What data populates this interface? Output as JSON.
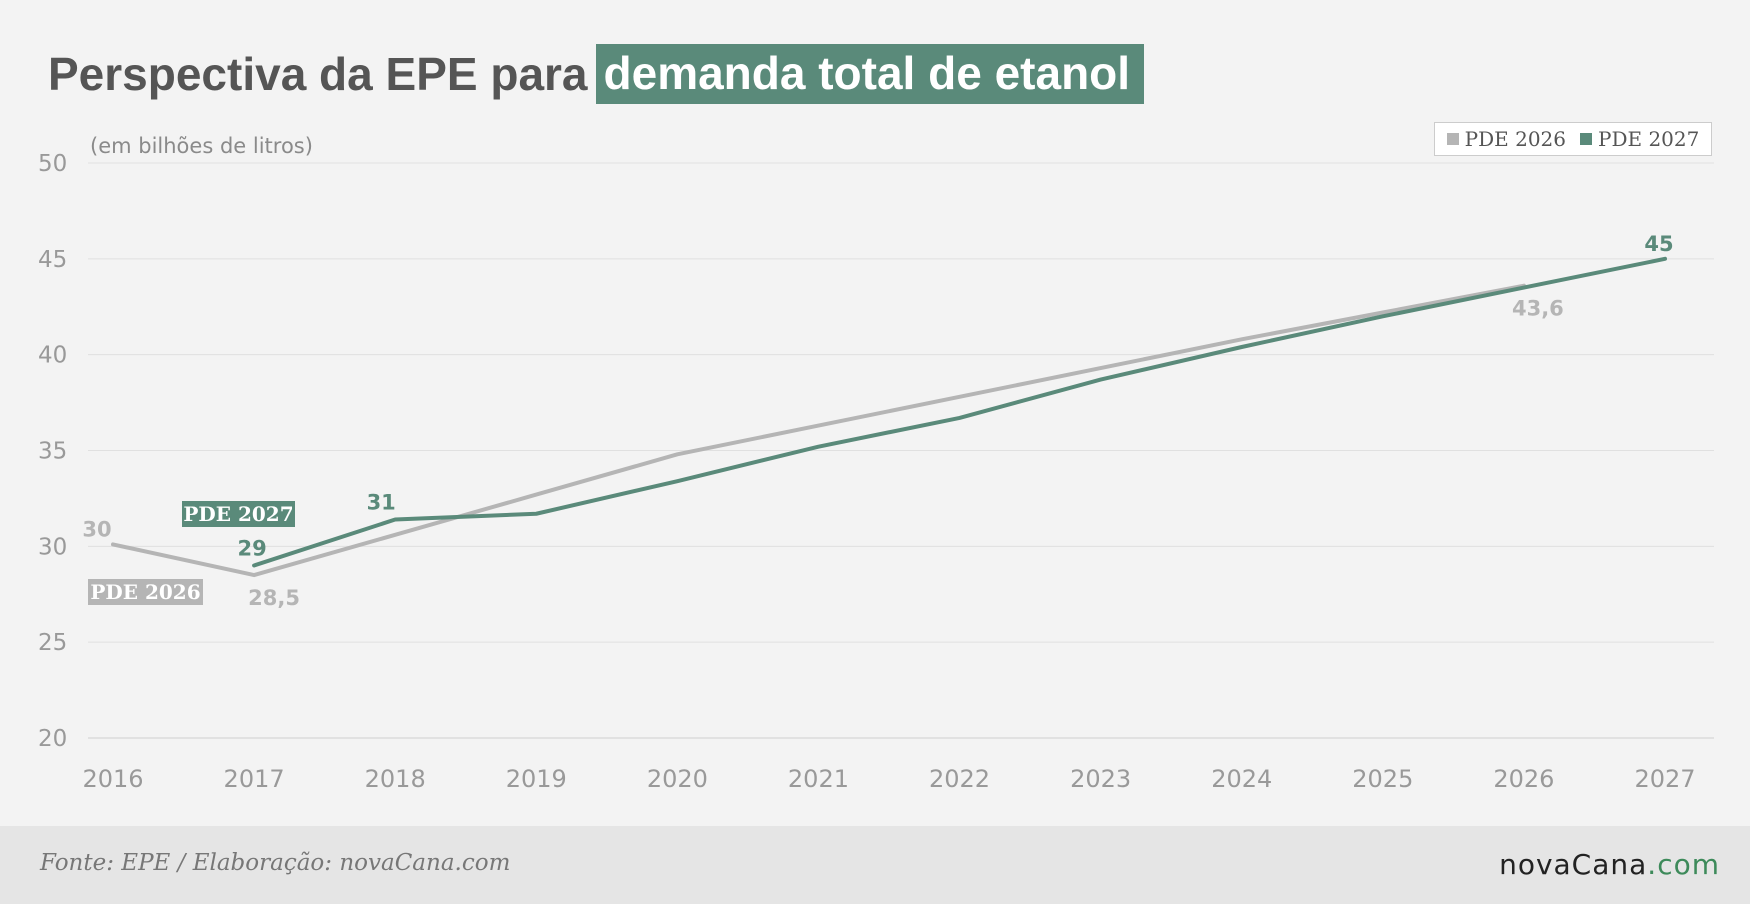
{
  "title": {
    "part1": "Perspectiva da EPE para",
    "part2": "demanda total de etanol"
  },
  "footer": {
    "source": "Fonte: EPE / Elaboração: novaCana.com",
    "brand_main": "novaCana",
    "brand_tld": ".com"
  },
  "colors": {
    "pde2026": "#b5b5b5",
    "pde2027": "#5a8a7a",
    "highlight": "#5a8a7a"
  },
  "chart_data": {
    "type": "line",
    "title": "Perspectiva da EPE para demanda total de etanol",
    "unit_label": "(em bilhões de litros)",
    "xlabel": "",
    "ylabel": "",
    "ylim": [
      20,
      50
    ],
    "yticks": [
      20,
      25,
      30,
      35,
      40,
      45,
      50
    ],
    "x": [
      2016,
      2017,
      2018,
      2019,
      2020,
      2021,
      2022,
      2023,
      2024,
      2025,
      2026,
      2027
    ],
    "grid": true,
    "legend_position": "top-right",
    "series": [
      {
        "name": "PDE 2026",
        "color": "#b5b5b5",
        "x": [
          2016,
          2017,
          2018,
          2019,
          2020,
          2021,
          2022,
          2023,
          2024,
          2025,
          2026
        ],
        "values": [
          30.1,
          28.5,
          30.6,
          32.7,
          34.8,
          36.3,
          37.8,
          39.3,
          40.8,
          42.2,
          43.6
        ],
        "tag": "PDE 2026",
        "data_labels": [
          {
            "x": 2016,
            "text": "30"
          },
          {
            "x": 2017,
            "text": "28,5"
          },
          {
            "x": 2026,
            "text": "43,6"
          }
        ]
      },
      {
        "name": "PDE 2027",
        "color": "#5a8a7a",
        "x": [
          2017,
          2018,
          2019,
          2020,
          2021,
          2022,
          2023,
          2024,
          2025,
          2026,
          2027
        ],
        "values": [
          29.0,
          31.4,
          31.7,
          33.4,
          35.2,
          36.7,
          38.7,
          40.4,
          42.0,
          43.5,
          45.0
        ],
        "tag": "PDE 2027",
        "data_labels": [
          {
            "x": 2017,
            "text": "29"
          },
          {
            "x": 2018,
            "text": "31"
          },
          {
            "x": 2027,
            "text": "45"
          }
        ]
      }
    ]
  }
}
